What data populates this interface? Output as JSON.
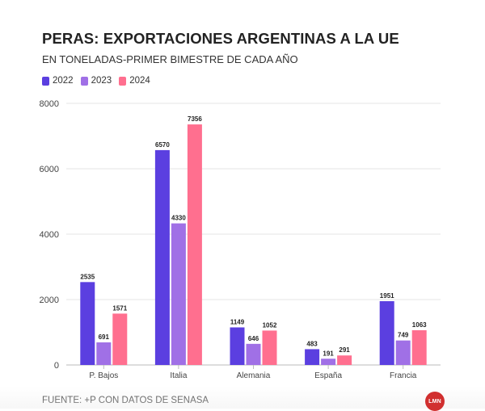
{
  "chart_data": {
    "type": "bar",
    "title": "PERAS: EXPORTACIONES ARGENTINAS A LA UE",
    "subtitle": "EN TONELADAS-PRIMER BIMESTRE DE CADA AÑO",
    "categories": [
      "P. Bajos",
      "Italia",
      "Alemania",
      "España",
      "Francia"
    ],
    "series": [
      {
        "name": "2022",
        "color": "#5b3fe0",
        "values": [
          2535,
          6570,
          1149,
          483,
          1951
        ]
      },
      {
        "name": "2023",
        "color": "#a070e6",
        "values": [
          691,
          4330,
          646,
          191,
          749
        ]
      },
      {
        "name": "2024",
        "color": "#ff6f8f",
        "values": [
          1571,
          7356,
          1052,
          291,
          1063
        ]
      }
    ],
    "ylim": [
      0,
      8000
    ],
    "yticks": [
      "0",
      "2000",
      "4000",
      "6000",
      "8000"
    ],
    "ytick_values": [
      0,
      2000,
      4000,
      6000,
      8000
    ],
    "grid": true,
    "legend": "top-left",
    "source": "FUENTE: +P CON DATOS DE SENASA"
  },
  "brand": {
    "logo_text": "LMN",
    "logo_color": "#d12f2f"
  }
}
